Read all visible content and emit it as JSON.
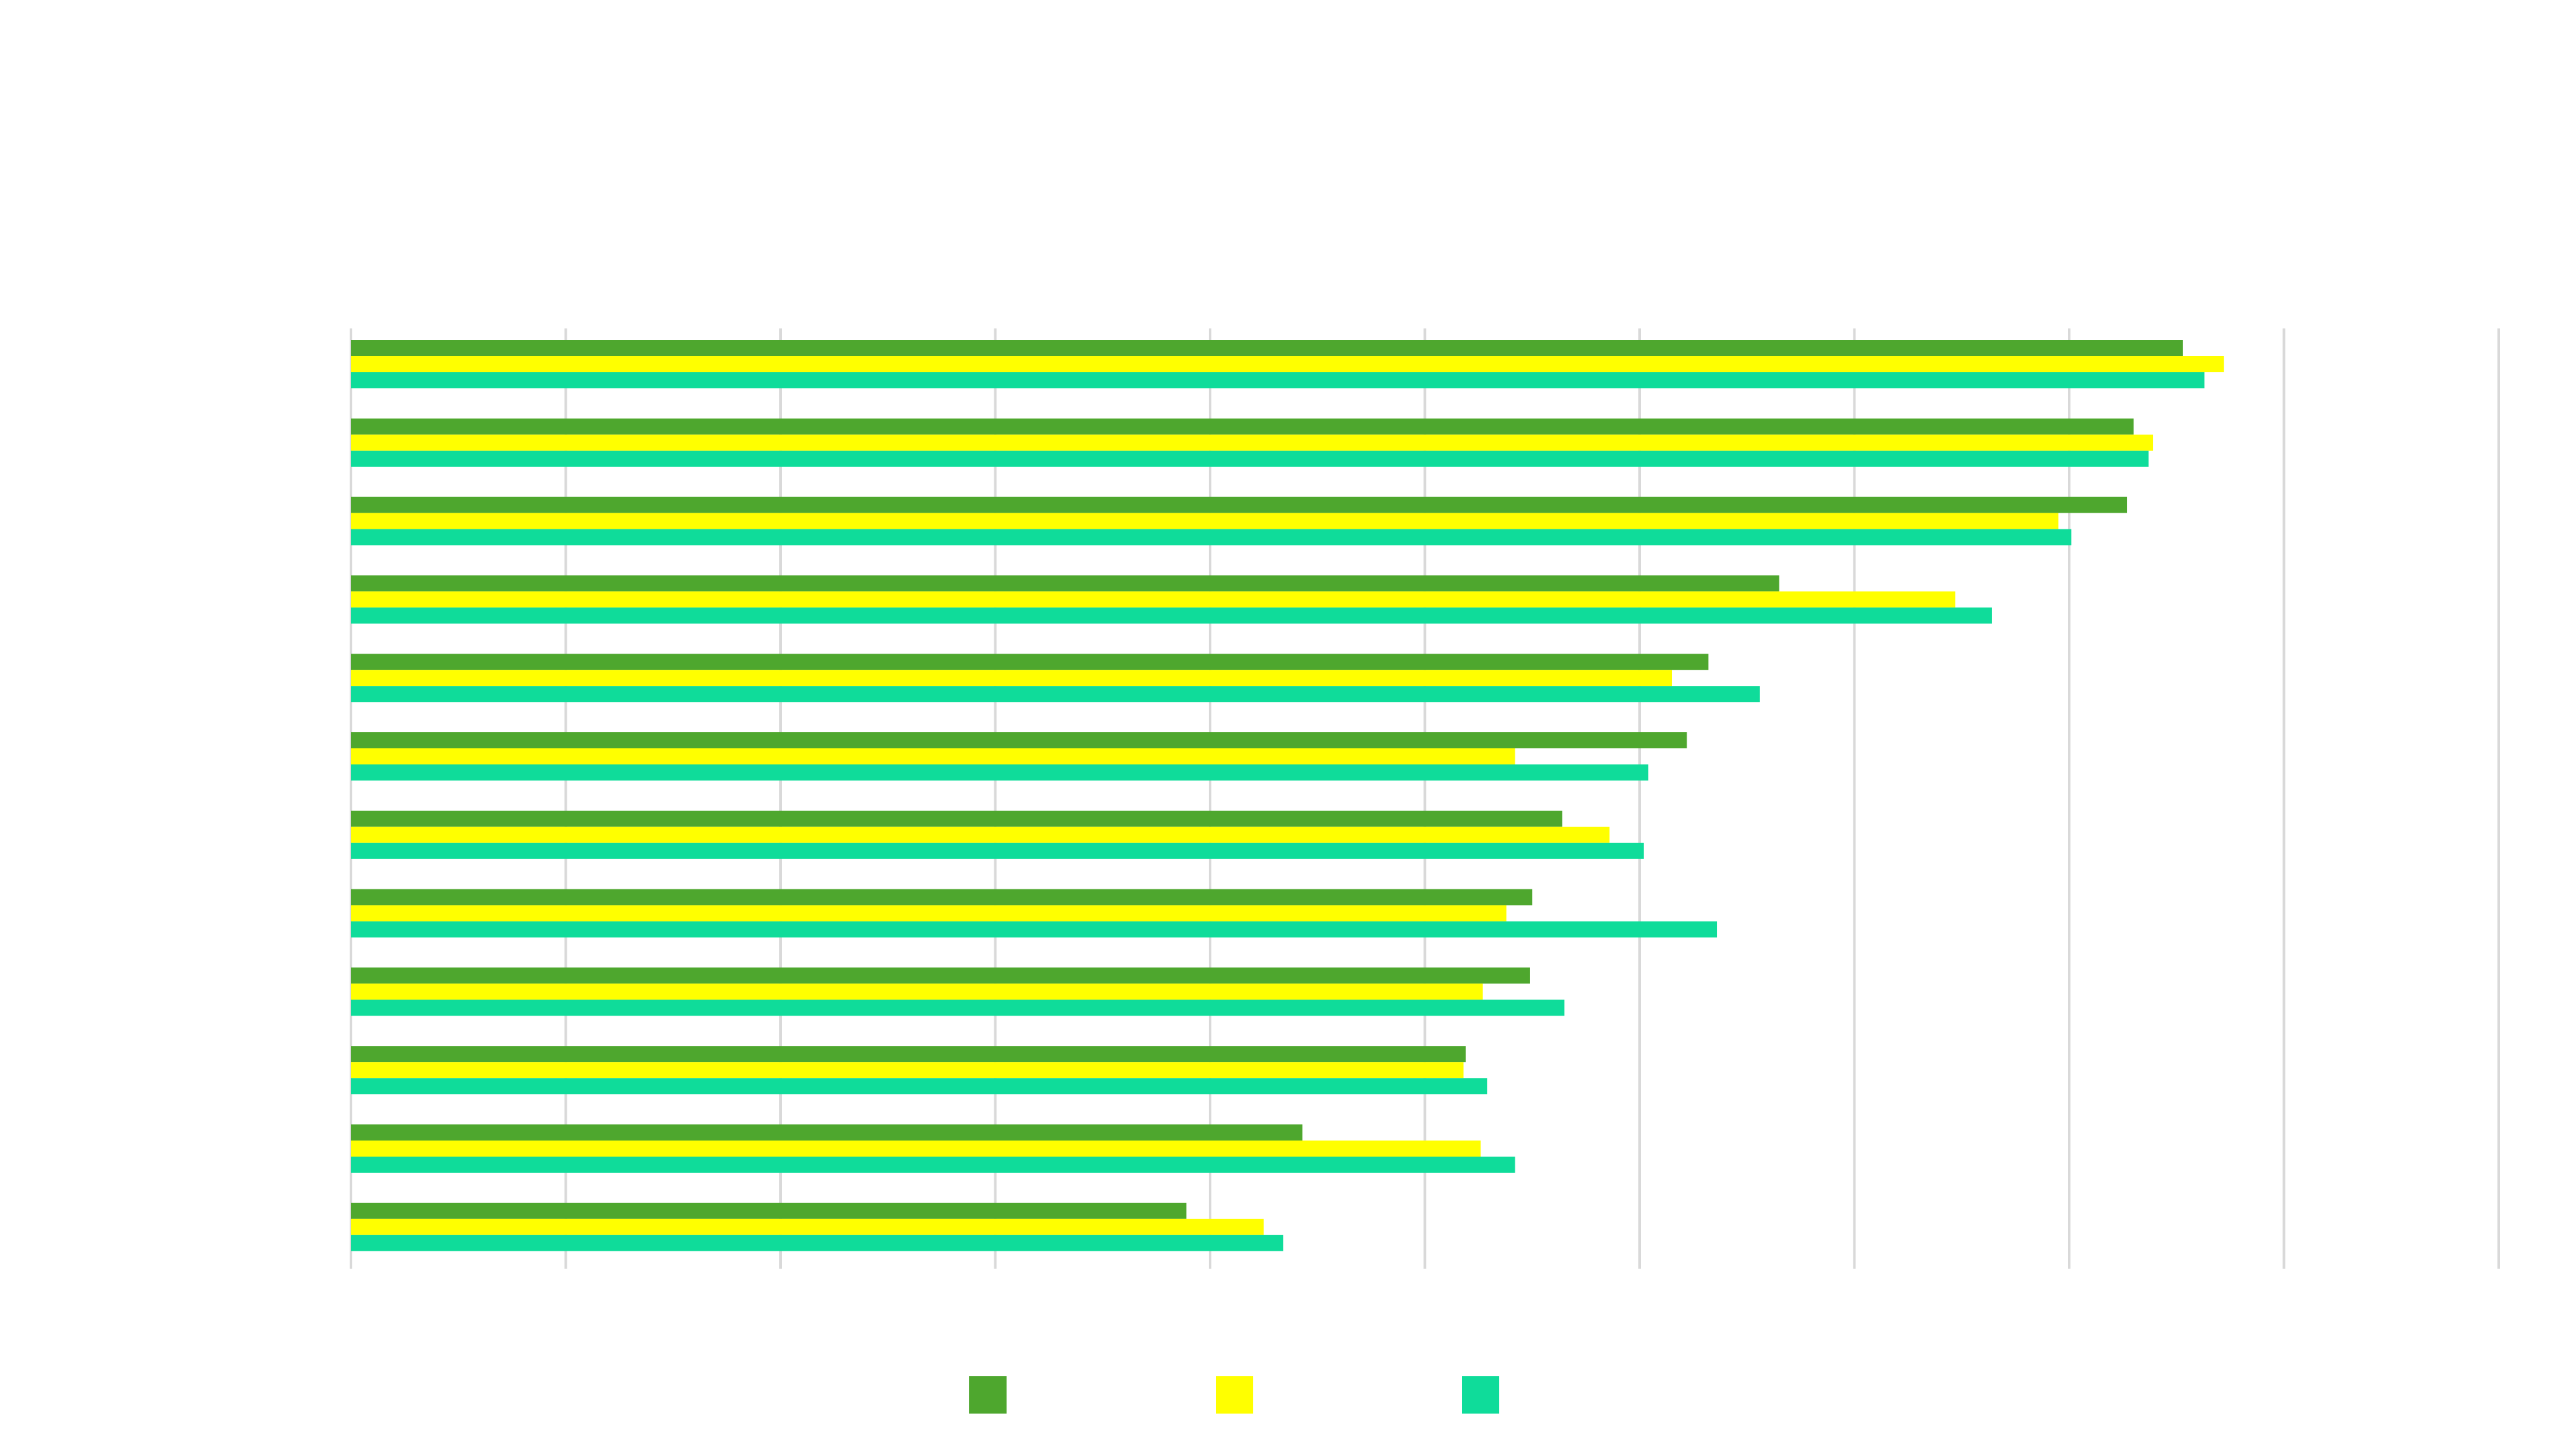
{
  "chart_data": {
    "type": "bar",
    "orientation": "horizontal",
    "title": "",
    "xlabel": "",
    "ylabel": "",
    "xlim": [
      0,
      1
    ],
    "x_ticks": [
      0,
      0.1,
      0.2,
      0.3,
      0.4,
      0.5,
      0.6,
      0.7,
      0.8,
      0.9,
      1.0
    ],
    "grid": true,
    "legend": "bottom",
    "categories": [
      "",
      "",
      "",
      "",
      "",
      "",
      "",
      "",
      "",
      "",
      "",
      ""
    ],
    "series": [
      {
        "color": "#4ea72e",
        "values": [
          0.853,
          0.83,
          0.827,
          0.665,
          0.632,
          0.622,
          0.564,
          0.55,
          0.549,
          0.519,
          0.443,
          0.389
        ]
      },
      {
        "color": "#ffff00",
        "values": [
          0.872,
          0.839,
          0.795,
          0.747,
          0.615,
          0.542,
          0.586,
          0.538,
          0.527,
          0.518,
          0.526,
          0.425
        ]
      },
      {
        "color": "#0fdc9a",
        "values": [
          0.863,
          0.837,
          0.801,
          0.764,
          0.656,
          0.604,
          0.602,
          0.636,
          0.565,
          0.529,
          0.542,
          0.434
        ]
      }
    ]
  }
}
